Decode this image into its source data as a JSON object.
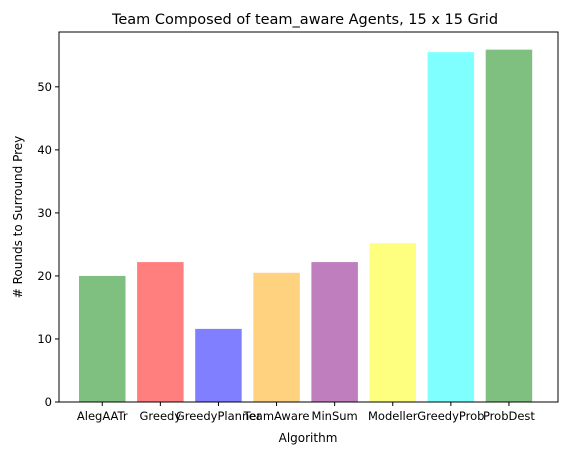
{
  "chart_data": {
    "type": "bar",
    "title": "Team Composed of team_aware Agents, 15 x 15 Grid",
    "xlabel": "Algorithm",
    "ylabel": "# Rounds to Surround Prey",
    "categories": [
      "AlegAATr",
      "Greedy",
      "GreedyPlanner",
      "TeamAware",
      "MinSum",
      "Modeller",
      "GreedyProb",
      "ProbDest"
    ],
    "values": [
      20.0,
      22.2,
      11.6,
      20.5,
      22.2,
      25.2,
      55.5,
      55.9
    ],
    "colors": [
      "#008000",
      "#ff0000",
      "#0000ff",
      "#ffa500",
      "#800080",
      "#ffff00",
      "#00ffff",
      "#008000"
    ],
    "bar_opacity": 0.5,
    "ylim": [
      0,
      58.7
    ],
    "yticks": [
      0,
      10,
      20,
      30,
      40,
      50
    ],
    "grid": false,
    "legend": "none"
  }
}
